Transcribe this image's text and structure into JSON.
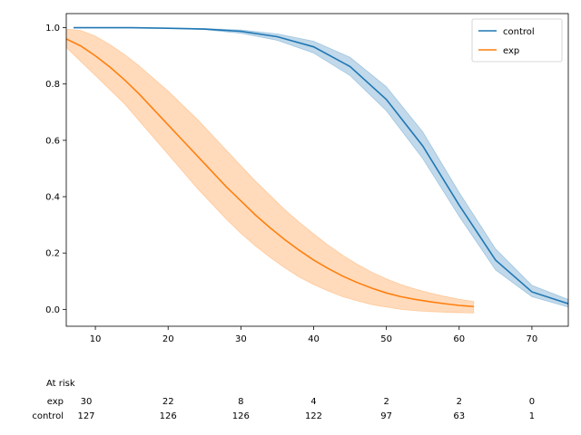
{
  "chart_data": {
    "type": "line",
    "title": "",
    "xlabel": "",
    "ylabel": "",
    "xlim": [
      6,
      75
    ],
    "ylim": [
      -0.06,
      1.05
    ],
    "xticks": [
      10,
      20,
      30,
      40,
      50,
      60,
      70
    ],
    "yticks": [
      0.0,
      0.2,
      0.4,
      0.6,
      0.8,
      1.0
    ],
    "ytick_labels": [
      "0.0",
      "0.2",
      "0.4",
      "0.6",
      "0.8",
      "1.0"
    ],
    "legend_position": "top-right",
    "series": [
      {
        "name": "control",
        "color": "#1f77b4",
        "x": [
          7,
          10,
          15,
          20,
          25,
          30,
          35,
          40,
          45,
          50,
          55,
          60,
          65,
          70,
          75
        ],
        "y": [
          1.0,
          1.0,
          1.0,
          0.998,
          0.995,
          0.987,
          0.968,
          0.932,
          0.862,
          0.745,
          0.58,
          0.37,
          0.175,
          0.062,
          0.02
        ],
        "lower": [
          1.0,
          1.0,
          1.0,
          0.998,
          0.993,
          0.98,
          0.955,
          0.91,
          0.83,
          0.705,
          0.535,
          0.33,
          0.14,
          0.045,
          0.008
        ],
        "upper": [
          1.0,
          1.0,
          1.0,
          0.999,
          0.997,
          0.992,
          0.978,
          0.952,
          0.895,
          0.79,
          0.63,
          0.415,
          0.215,
          0.085,
          0.035
        ]
      },
      {
        "name": "exp",
        "color": "#ff7f0e",
        "x": [
          6,
          8,
          10,
          12,
          14,
          16,
          18,
          20,
          22,
          24,
          26,
          28,
          30,
          32,
          34,
          36,
          38,
          40,
          42,
          44,
          46,
          48,
          50,
          52,
          54,
          56,
          58,
          60,
          62
        ],
        "y": [
          0.96,
          0.935,
          0.9,
          0.86,
          0.815,
          0.765,
          0.71,
          0.655,
          0.6,
          0.545,
          0.49,
          0.435,
          0.385,
          0.335,
          0.29,
          0.248,
          0.21,
          0.175,
          0.145,
          0.118,
          0.095,
          0.075,
          0.058,
          0.045,
          0.035,
          0.027,
          0.02,
          0.014,
          0.01
        ],
        "lower": [
          0.93,
          0.88,
          0.83,
          0.78,
          0.73,
          0.67,
          0.61,
          0.55,
          0.49,
          0.43,
          0.375,
          0.32,
          0.27,
          0.225,
          0.185,
          0.148,
          0.115,
          0.088,
          0.065,
          0.045,
          0.03,
          0.017,
          0.008,
          0.0,
          -0.005,
          -0.008,
          -0.01,
          -0.012,
          -0.013
        ],
        "upper": [
          0.995,
          0.99,
          0.97,
          0.94,
          0.905,
          0.865,
          0.82,
          0.775,
          0.725,
          0.675,
          0.62,
          0.565,
          0.51,
          0.455,
          0.405,
          0.355,
          0.31,
          0.268,
          0.228,
          0.192,
          0.16,
          0.132,
          0.108,
          0.088,
          0.072,
          0.058,
          0.046,
          0.036,
          0.028
        ]
      }
    ]
  },
  "at_risk": {
    "title": "At risk",
    "times": [
      8,
      20,
      30,
      40,
      50,
      60,
      70
    ],
    "rows": [
      {
        "label": "exp",
        "values": [
          "30",
          "22",
          "8",
          "4",
          "2",
          "2",
          "0"
        ]
      },
      {
        "label": "control",
        "values": [
          "127",
          "126",
          "126",
          "122",
          "97",
          "63",
          "1"
        ]
      }
    ]
  }
}
